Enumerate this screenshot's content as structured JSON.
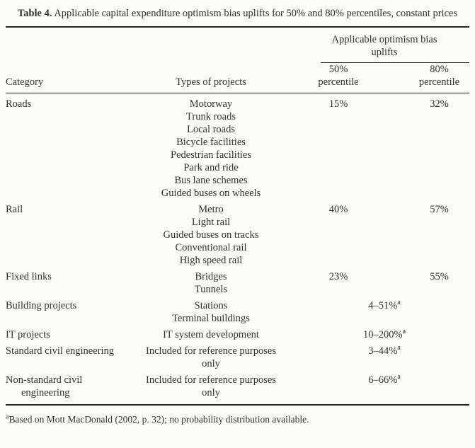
{
  "colors": {
    "background": "#fbfbfa",
    "text": "#333231",
    "rule": "#262524"
  },
  "title": {
    "label": "Table 4.",
    "text": "Applicable capital expenditure optimism bias uplifts for 50% and 80% percentiles, constant prices"
  },
  "header": {
    "span_label": "Applicable optimism bias uplifts",
    "category": "Category",
    "types": "Types of projects",
    "p50": "50% percentile",
    "p80": "80% percentile"
  },
  "rows": [
    {
      "category": "Roads",
      "types": [
        "Motorway",
        "Trunk roads",
        "Local roads",
        "Bicycle facilities",
        "Pedestrian facilities",
        "Park and ride",
        "Bus lane schemes",
        "Guided buses on wheels"
      ],
      "p50": "15%",
      "p80": "32%"
    },
    {
      "category": "Rail",
      "types": [
        "Metro",
        "Light rail",
        "Guided buses on tracks",
        "Conventional rail",
        "High speed rail"
      ],
      "p50": "40%",
      "p80": "57%"
    },
    {
      "category": "Fixed links",
      "types": [
        "Bridges",
        "Tunnels"
      ],
      "p50": "23%",
      "p80": "55%"
    },
    {
      "category": "Building projects",
      "types": [
        "Stations",
        "Terminal buildings"
      ],
      "range": "4–51%",
      "sup": "a"
    },
    {
      "category": "IT projects",
      "types": [
        "IT system development"
      ],
      "range": "10–200%",
      "sup": "a"
    },
    {
      "category": "Standard civil engineering",
      "types": [
        "Included for reference purposes only"
      ],
      "range": "3–44%",
      "sup": "a"
    },
    {
      "category": "Non-standard civil engineering",
      "types": [
        "Included for reference purposes only"
      ],
      "range": "6–66%",
      "sup": "a"
    }
  ],
  "footnote": {
    "mark": "a",
    "text": "Based on Mott MacDonald (2002, p. 32); no probability distribution available."
  }
}
